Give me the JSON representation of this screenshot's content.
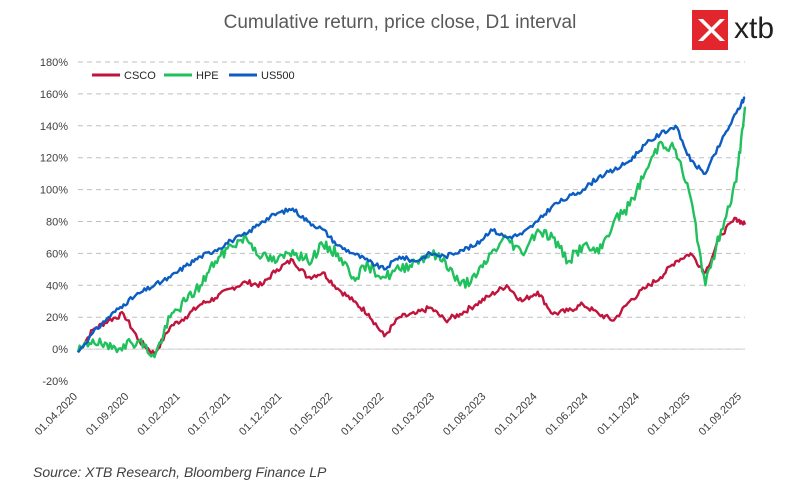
{
  "chart_data": {
    "type": "line",
    "title": "Cumulative return, price close, D1 interval",
    "xlabel": "",
    "ylabel": "",
    "ylim": [
      -20,
      180
    ],
    "y_ticks": [
      "-20%",
      "0%",
      "20%",
      "40%",
      "60%",
      "80%",
      "100%",
      "120%",
      "140%",
      "160%",
      "180%"
    ],
    "x_ticks": [
      "01.04.2020",
      "01.09.2020",
      "01.02.2021",
      "01.07.2021",
      "01.12.2021",
      "01.05.2022",
      "01.10.2022",
      "01.03.2023",
      "01.08.2023",
      "01.01.2024",
      "01.06.2024",
      "01.11.2024",
      "01.04.2025",
      "01.09.2025"
    ],
    "grid": true,
    "legend_position": "top-left",
    "x": [
      "2020-04-01",
      "2020-05-15",
      "2020-07-01",
      "2020-08-15",
      "2020-10-01",
      "2020-11-15",
      "2021-01-01",
      "2021-02-15",
      "2021-04-01",
      "2021-05-15",
      "2021-07-01",
      "2021-08-15",
      "2021-10-01",
      "2021-11-15",
      "2022-01-01",
      "2022-02-15",
      "2022-04-01",
      "2022-05-15",
      "2022-07-01",
      "2022-08-15",
      "2022-10-01",
      "2022-11-15",
      "2023-01-01",
      "2023-02-15",
      "2023-04-01",
      "2023-05-15",
      "2023-07-01",
      "2023-08-15",
      "2023-10-01",
      "2023-11-15",
      "2024-01-01",
      "2024-02-15",
      "2024-04-01",
      "2024-05-15",
      "2024-07-01",
      "2024-08-15",
      "2024-10-01",
      "2024-11-15",
      "2025-01-01",
      "2025-02-15",
      "2025-04-01",
      "2025-05-15",
      "2025-07-01",
      "2025-08-15",
      "2025-09-10"
    ],
    "series": [
      {
        "name": "CSCO",
        "color": "#c0143c",
        "values": [
          -2,
          12,
          18,
          22,
          5,
          -3,
          14,
          20,
          28,
          32,
          38,
          42,
          40,
          50,
          56,
          45,
          48,
          38,
          30,
          22,
          8,
          20,
          22,
          26,
          18,
          22,
          28,
          34,
          40,
          30,
          36,
          22,
          24,
          28,
          22,
          18,
          30,
          38,
          45,
          55,
          60,
          48,
          72,
          82,
          78
        ]
      },
      {
        "name": "HPE",
        "color": "#20c05c",
        "values": [
          -2,
          6,
          0,
          3,
          5,
          -5,
          20,
          30,
          40,
          55,
          65,
          70,
          58,
          55,
          62,
          55,
          65,
          60,
          45,
          52,
          45,
          50,
          55,
          60,
          55,
          40,
          45,
          60,
          70,
          60,
          75,
          70,
          55,
          65,
          60,
          80,
          90,
          110,
          130,
          125,
          95,
          40,
          75,
          105,
          152
        ]
      },
      {
        "name": "US500",
        "color": "#0c5dc2",
        "values": [
          -2,
          10,
          20,
          28,
          35,
          40,
          45,
          52,
          58,
          62,
          68,
          72,
          80,
          85,
          88,
          80,
          75,
          65,
          60,
          55,
          50,
          58,
          55,
          60,
          58,
          62,
          65,
          75,
          70,
          72,
          80,
          90,
          95,
          100,
          108,
          112,
          118,
          128,
          135,
          140,
          118,
          110,
          130,
          148,
          158
        ]
      }
    ]
  },
  "source_text": "Source: XTB Research, Bloomberg Finance LP",
  "logo_text": "xtb"
}
